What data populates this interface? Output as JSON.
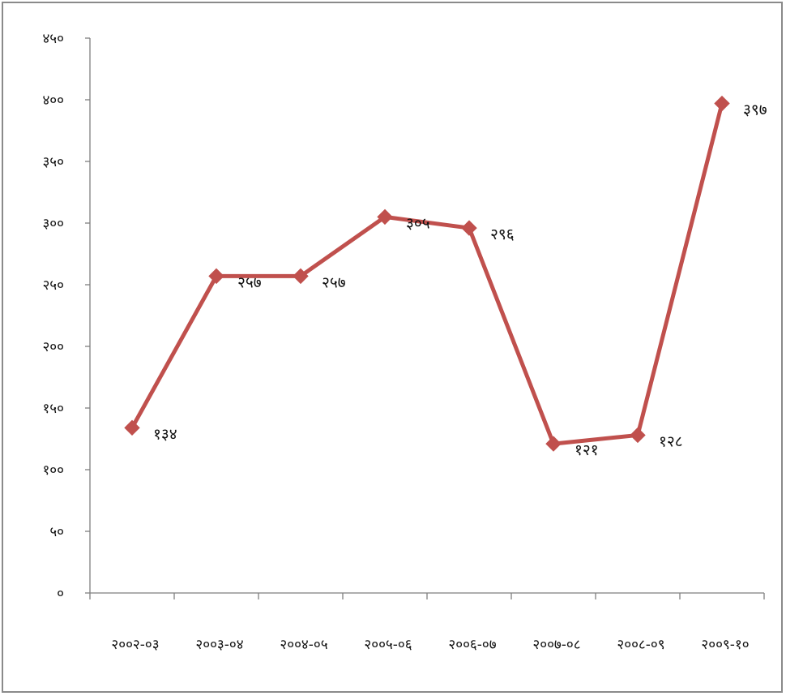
{
  "chart_data": {
    "type": "line",
    "title": "",
    "xlabel": "",
    "ylabel": "",
    "categories": [
      "२००२-०३",
      "२००३-०४",
      "२००४-०५",
      "२००५-०६",
      "२००६-०७",
      "२००७-०८",
      "२००८-०९",
      "२००९-१०"
    ],
    "values": [
      134,
      257,
      257,
      305,
      296,
      121,
      128,
      397
    ],
    "value_labels": [
      "१३४",
      "२५७",
      "२५७",
      "३०५",
      "२९६",
      "१२१",
      "१२८",
      "३९७"
    ],
    "ylim": [
      0,
      450
    ],
    "yticks": [
      0,
      50,
      100,
      150,
      200,
      250,
      300,
      350,
      400,
      450
    ],
    "ytick_labels": [
      "०",
      "५०",
      "१००",
      "१५०",
      "२००",
      "२५०",
      "३००",
      "३५०",
      "४००",
      "४५०"
    ],
    "grid": false,
    "legend": "none",
    "series_color": "#c0504d"
  }
}
